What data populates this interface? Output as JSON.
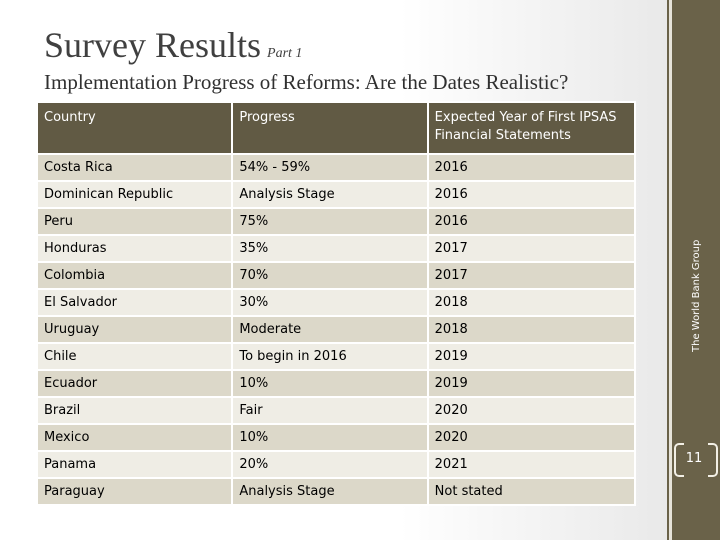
{
  "slide": {
    "title": "Survey Results",
    "title_part": "Part 1",
    "subtitle": "Implementation Progress of Reforms:  Are the Dates Realistic?",
    "sidebar_text": "The World Bank Group",
    "page_number": "11"
  },
  "table": {
    "headers": [
      "Country",
      "Progress",
      "Expected Year of First IPSAS Financial Statements"
    ],
    "rows": [
      [
        "Costa Rica",
        "54% - 59%",
        "2016"
      ],
      [
        "Dominican Republic",
        "Analysis Stage",
        "2016"
      ],
      [
        "Peru",
        "75%",
        "2016"
      ],
      [
        "Honduras",
        "35%",
        "2017"
      ],
      [
        "Colombia",
        "70%",
        "2017"
      ],
      [
        "El Salvador",
        "30%",
        "2018"
      ],
      [
        "Uruguay",
        "Moderate",
        "2018"
      ],
      [
        "Chile",
        "To begin in 2016",
        "2019"
      ],
      [
        "Ecuador",
        "10%",
        "2019"
      ],
      [
        "Brazil",
        "Fair",
        "2020"
      ],
      [
        "Mexico",
        "10%",
        "2020"
      ],
      [
        "Panama",
        "20%",
        "2021"
      ],
      [
        "Paraguay",
        "Analysis Stage",
        "Not stated"
      ]
    ]
  },
  "colors": {
    "header_bg": "#615a44",
    "row_dark": "#dcd8c9",
    "row_light": "#efede5",
    "sidebar": "#6a6249"
  }
}
